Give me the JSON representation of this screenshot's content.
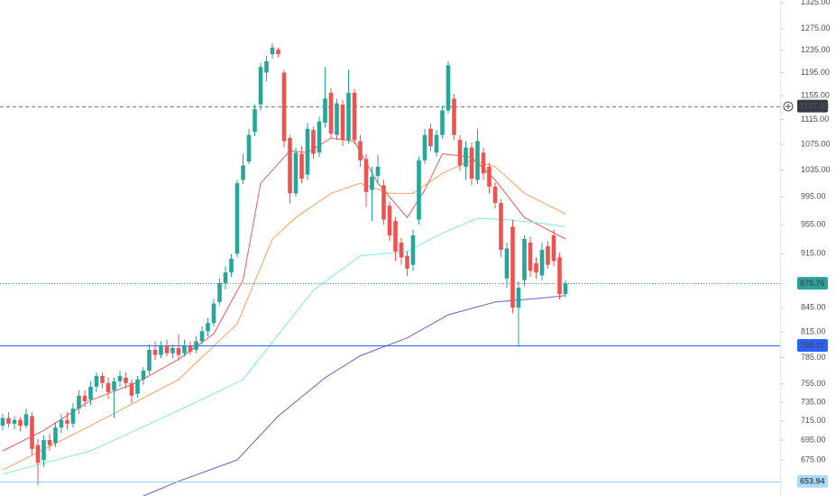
{
  "chart_data": {
    "type": "candlestick",
    "log_scale": true,
    "ylim": [
      640,
      1330
    ],
    "yticks": [
      {
        "value": 1325,
        "label": "1325.00"
      },
      {
        "value": 1275,
        "label": "1275.00"
      },
      {
        "value": 1235,
        "label": "1235.00"
      },
      {
        "value": 1195,
        "label": "1195.00"
      },
      {
        "value": 1155,
        "label": "1155.00"
      },
      {
        "value": 1115,
        "label": "1115.00"
      },
      {
        "value": 1075,
        "label": "1075.00"
      },
      {
        "value": 1035,
        "label": "1035.00"
      },
      {
        "value": 995,
        "label": "995.00"
      },
      {
        "value": 955,
        "label": "955.00"
      },
      {
        "value": 915,
        "label": "915.00"
      },
      {
        "value": 845,
        "label": "845.00"
      },
      {
        "value": 815,
        "label": "815.00"
      },
      {
        "value": 785,
        "label": "785.00"
      },
      {
        "value": 755,
        "label": "755.00"
      },
      {
        "value": 735,
        "label": "735.00"
      },
      {
        "value": 715,
        "label": "715.00"
      },
      {
        "value": 695,
        "label": "695.00"
      },
      {
        "value": 675,
        "label": "675.00"
      }
    ],
    "up_color": "#26a69a",
    "down_color": "#ef5350",
    "open": [
      710,
      718,
      712,
      716,
      710,
      720,
      690,
      675,
      695,
      692,
      708,
      716,
      712,
      728,
      742,
      738,
      752,
      764,
      756,
      748,
      758,
      762,
      756,
      744,
      760,
      770,
      794,
      788,
      798,
      790,
      796,
      790,
      798,
      794,
      804,
      816,
      826,
      852,
      876,
      890,
      915,
      1020,
      1048,
      1095,
      1140,
      1195,
      1228,
      1236,
      1195,
      1085,
      1000,
      1060,
      1028,
      1098,
      1062,
      1110,
      1160,
      1090,
      1140,
      1082,
      1160,
      1080,
      1052,
      1005,
      1026,
      1012,
      982,
      960,
      930,
      912,
      900,
      962,
      1050,
      1100,
      1062,
      1090,
      1130,
      1150,
      1082,
      1040,
      1070,
      1020,
      1062,
      1040,
      1010,
      986,
      882,
      952,
      845,
      880,
      930,
      902,
      886,
      925,
      940,
      910,
      862
    ],
    "high": [
      722,
      724,
      720,
      719,
      728,
      724,
      696,
      700,
      702,
      714,
      722,
      724,
      734,
      748,
      748,
      758,
      768,
      768,
      762,
      762,
      770,
      768,
      760,
      764,
      774,
      800,
      804,
      804,
      806,
      800,
      812,
      806,
      804,
      810,
      822,
      832,
      856,
      882,
      898,
      914,
      1020,
      1060,
      1100,
      1140,
      1212,
      1225,
      1248,
      1240,
      1200,
      1090,
      1070,
      1072,
      1110,
      1104,
      1120,
      1205,
      1168,
      1150,
      1148,
      1200,
      1166,
      1090,
      1060,
      1040,
      1058,
      1020,
      988,
      966,
      936,
      918,
      948,
      1056,
      1100,
      1108,
      1098,
      1138,
      1215,
      1158,
      1090,
      1080,
      1078,
      1100,
      1070,
      1046,
      1016,
      992,
      930,
      962,
      878,
      940,
      938,
      910,
      930,
      932,
      948,
      916,
      880
    ],
    "low": [
      705,
      708,
      706,
      704,
      707,
      680,
      650,
      668,
      684,
      688,
      702,
      706,
      708,
      722,
      730,
      732,
      746,
      750,
      738,
      718,
      752,
      750,
      734,
      740,
      754,
      766,
      782,
      784,
      786,
      784,
      782,
      786,
      788,
      790,
      800,
      810,
      822,
      848,
      868,
      884,
      910,
      1014,
      1044,
      1088,
      1130,
      1180,
      1220,
      1222,
      1070,
      985,
      995,
      1015,
      1020,
      1052,
      1055,
      1102,
      1085,
      1082,
      1072,
      1076,
      1075,
      1040,
      980,
      960,
      1015,
      955,
      932,
      905,
      900,
      885,
      892,
      955,
      1044,
      1064,
      1056,
      1084,
      1125,
      1082,
      1034,
      1020,
      1012,
      1014,
      1020,
      1000,
      978,
      910,
      870,
      838,
      797,
      872,
      884,
      882,
      880,
      895,
      898,
      855,
      858
    ],
    "close": [
      718,
      712,
      716,
      710,
      722,
      686,
      672,
      695,
      690,
      708,
      716,
      712,
      728,
      742,
      736,
      752,
      764,
      756,
      746,
      758,
      764,
      756,
      742,
      760,
      770,
      794,
      788,
      798,
      790,
      796,
      788,
      798,
      792,
      804,
      816,
      826,
      850,
      876,
      890,
      908,
      1015,
      1042,
      1090,
      1132,
      1205,
      1215,
      1240,
      1228,
      1080,
      1000,
      1062,
      1022,
      1100,
      1060,
      1112,
      1150,
      1092,
      1142,
      1082,
      1160,
      1082,
      1050,
      1002,
      1025,
      1040,
      962,
      940,
      918,
      910,
      895,
      940,
      1050,
      1090,
      1072,
      1090,
      1130,
      1208,
      1090,
      1042,
      1070,
      1022,
      1080,
      1030,
      1010,
      986,
      920,
      922,
      845,
      870,
      935,
      892,
      890,
      920,
      900,
      905,
      862,
      875.76
    ],
    "lines": [
      {
        "color": "#f05a5a",
        "x": [
          0,
          7,
          15,
          23,
          30,
          36,
          41,
          44,
          49,
          52,
          56,
          60,
          64,
          69,
          72,
          75,
          80,
          84,
          89,
          96
        ],
        "values": [
          684,
          705,
          737,
          757,
          783,
          813,
          880,
          1015,
          1065,
          1062,
          1085,
          1080,
          1015,
          965,
          1005,
          1060,
          1055,
          1020,
          965,
          935
        ]
      },
      {
        "color": "#ffa05c",
        "x": [
          0,
          15,
          30,
          40,
          46,
          50,
          56,
          61,
          66,
          70,
          75,
          80,
          84,
          89,
          96
        ],
        "values": [
          665,
          710,
          760,
          825,
          935,
          965,
          1000,
          1015,
          1000,
          1000,
          1030,
          1050,
          1040,
          1000,
          970
        ]
      },
      {
        "color": "#7fe8f0",
        "x": [
          0,
          15,
          30,
          41,
          47,
          53,
          61,
          69,
          75,
          81,
          86,
          92,
          96
        ],
        "values": [
          661,
          684,
          726,
          760,
          812,
          867,
          912,
          918,
          943,
          964,
          962,
          957,
          952
        ]
      },
      {
        "color": "#6a5cd8",
        "x": [
          24,
          30,
          40,
          47,
          55,
          61,
          69,
          76,
          84,
          92,
          96
        ],
        "values": [
          640,
          654,
          675,
          720,
          762,
          787,
          808,
          836,
          852,
          857,
          860
        ]
      }
    ],
    "price_lines": [
      {
        "value": 1137.33,
        "color": "#787b86",
        "style": "dashed",
        "label_color": "#363a45",
        "text_color": "#ffffff"
      },
      {
        "value": 875.76,
        "color": "#26a69a",
        "style": "dotted",
        "label_color": "#26a69a",
        "text_color": "#ffffff"
      },
      {
        "value": 799.17,
        "color": "#2962ff",
        "style": "solid",
        "label_color": "#2962ff",
        "text_color": "#ffffff"
      },
      {
        "value": 653.94,
        "color": "#90d5ff",
        "style": "solid",
        "label_color": "#a9dcf7",
        "text_color": "#1a2a4a"
      }
    ]
  }
}
